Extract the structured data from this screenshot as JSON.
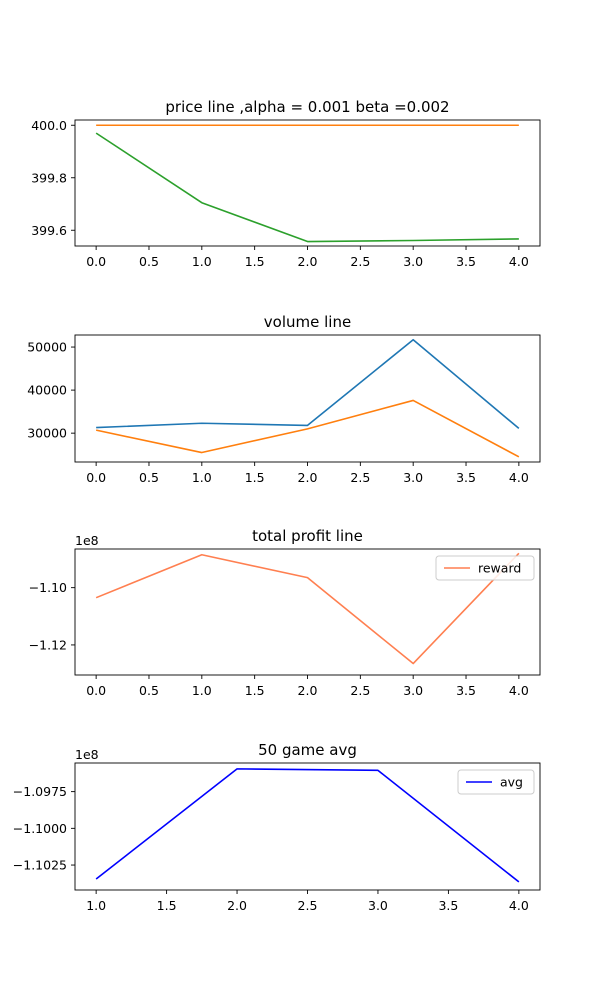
{
  "chart_data": [
    {
      "type": "line",
      "title": "price line ,alpha = 0.001 beta =0.002",
      "x": [
        0,
        1,
        2,
        3,
        4
      ],
      "xlim": [
        -0.2,
        4.2
      ],
      "ylim": [
        399.54,
        400.02
      ],
      "xticks": [
        0,
        0.5,
        1,
        1.5,
        2,
        2.5,
        3,
        3.5,
        4
      ],
      "xtick_labels": [
        "0.0",
        "0.5",
        "1.0",
        "1.5",
        "2.0",
        "2.5",
        "3.0",
        "3.5",
        "4.0"
      ],
      "yticks": [
        399.6,
        399.8,
        400.0
      ],
      "ytick_labels": [
        "399.6",
        "399.8",
        "400.0"
      ],
      "offset_text": "",
      "grid": false,
      "series": [
        {
          "color": "#ff7f0e",
          "values": [
            400.0,
            400.0,
            400.0,
            400.0,
            400.0
          ]
        },
        {
          "color": "#2ca02c",
          "values": [
            399.97,
            399.705,
            399.557,
            399.561,
            399.567
          ]
        }
      ],
      "legend": null
    },
    {
      "type": "line",
      "title": "volume line",
      "x": [
        0,
        1,
        2,
        3,
        4
      ],
      "xlim": [
        -0.2,
        4.2
      ],
      "ylim": [
        23300,
        52800
      ],
      "xticks": [
        0,
        0.5,
        1,
        1.5,
        2,
        2.5,
        3,
        3.5,
        4
      ],
      "xtick_labels": [
        "0.0",
        "0.5",
        "1.0",
        "1.5",
        "2.0",
        "2.5",
        "3.0",
        "3.5",
        "4.0"
      ],
      "yticks": [
        30000,
        40000,
        50000
      ],
      "ytick_labels": [
        "30000",
        "40000",
        "50000"
      ],
      "offset_text": "",
      "grid": false,
      "series": [
        {
          "color": "#1f77b4",
          "values": [
            31300,
            32300,
            31800,
            51700,
            31100
          ]
        },
        {
          "color": "#ff7f0e",
          "values": [
            30700,
            25500,
            31000,
            37600,
            24500
          ]
        }
      ],
      "legend": null
    },
    {
      "type": "line",
      "title": "total profit line",
      "x": [
        0,
        1,
        2,
        3,
        4
      ],
      "xlim": [
        -0.2,
        4.2
      ],
      "ylim": [
        -1.1305,
        -1.0865
      ],
      "xticks": [
        0,
        0.5,
        1,
        1.5,
        2,
        2.5,
        3,
        3.5,
        4
      ],
      "xtick_labels": [
        "0.0",
        "0.5",
        "1.0",
        "1.5",
        "2.0",
        "2.5",
        "3.0",
        "3.5",
        "4.0"
      ],
      "yticks": [
        -1.12,
        -1.1
      ],
      "ytick_labels": [
        "−1.12",
        "−1.10"
      ],
      "offset_text": "1e8",
      "grid": false,
      "series": [
        {
          "name": "reward",
          "color": "#ff7f50",
          "values": [
            -1.1035,
            -1.0885,
            -1.0965,
            -1.1265,
            -1.088
          ]
        }
      ],
      "legend": "upper right"
    },
    {
      "type": "line",
      "title": "50 game avg",
      "x": [
        1,
        2,
        3,
        4
      ],
      "xlim": [
        0.85,
        4.15
      ],
      "ylim": [
        -1.1042,
        -1.09555
      ],
      "xticks": [
        1,
        1.5,
        2,
        2.5,
        3,
        3.5,
        4
      ],
      "xtick_labels": [
        "1.0",
        "1.5",
        "2.0",
        "2.5",
        "3.0",
        "3.5",
        "4.0"
      ],
      "yticks": [
        -1.1025,
        -1.1,
        -1.0975
      ],
      "ytick_labels": [
        "−1.1025",
        "−1.1000",
        "−1.0975"
      ],
      "offset_text": "1e8",
      "grid": false,
      "series": [
        {
          "name": "avg",
          "color": "#0000ff",
          "values": [
            -1.10345,
            -1.09595,
            -1.09605,
            -1.10365
          ]
        }
      ],
      "legend": "upper right"
    }
  ]
}
